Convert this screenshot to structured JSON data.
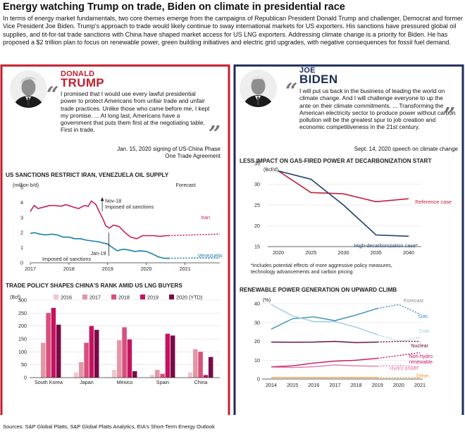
{
  "header": {
    "title": "Energy watching Trump on trade, Biden on climate in presidential race",
    "intro": "In terms of energy market fundamentals, two core themes emerge from the campaigns of Republican President Donald Trump and challenger, Democrat and former Vice President Joe Biden. Trump's approach to trade would likely continue to sway international markets for US exporters. His sanctions have pressured global oil supplies, and tit-for-tat trade sanctions with China have shaped market access for US LNG exporters. Addressing climate change is a priority for Biden. He has proposed a $2 trillion plan to focus on renewable power, green building initiatives and electric grid upgrades, with negative consequences for fossil fuel demand."
  },
  "trump": {
    "first": "DONALD",
    "last": "TRUMP",
    "quote": "I promised that I would use every lawful presidential power to protect Americans from unfair trade and unfair trade practices. Unlike those who came before me, I kept my promise. ... At long last, Americans have a government that puts them first at the negotiating table. First in trade.",
    "attribution": "Jan. 15, 2020 signing of US-China Phase One Trade Agreement",
    "accent": "#c41e2e"
  },
  "biden": {
    "first": "JOE",
    "last": "BIDEN",
    "quote": "I will put us back in the business of leading the world on climate change. And I will challenge everyone to up the ante on their climate commitments. ... Transforming the American electricity sector to produce power without carbon pollution will be the greatest spur to job creation and economic competitiveness in the 21st century.",
    "attribution": "Sept. 14, 2020 speech on climate change",
    "accent": "#1c2d5a"
  },
  "icons": {
    "quote_open": "quote-open-icon",
    "quote_close": "quote-close-icon",
    "portrait": "portrait-icon"
  },
  "sources": "Sources: S&P Global Platts, S&P Global Platts Analytics, EIA's Short-Term Energy Outlook",
  "chart_data": [
    {
      "type": "line",
      "title": "US SANCTIONS RESTRICT IRAN, VENEZUELA OIL SUPPLY",
      "ylabel": "(million b/d)",
      "ylim": [
        0,
        5
      ],
      "yticks": [
        0,
        1,
        2,
        3,
        4,
        5
      ],
      "xlim": [
        2017,
        2021.9
      ],
      "xticks": [
        "2017",
        "2018",
        "2019",
        "2020",
        "2021"
      ],
      "forecast_label": "Forecast",
      "forecast_start": 2020.58,
      "colors": {
        "Iran": "#c41e5f",
        "Venezuela": "#1a7fa6"
      },
      "series": [
        {
          "name": "Iran",
          "x": [
            2017,
            2017.1,
            2017.2,
            2017.35,
            2017.5,
            2017.65,
            2017.8,
            2017.9,
            2018.0,
            2018.1,
            2018.25,
            2018.4,
            2018.5,
            2018.58,
            2018.7,
            2018.8,
            2018.88,
            2018.95,
            2019.05,
            2019.15,
            2019.3,
            2019.45,
            2019.6,
            2019.75,
            2019.9,
            2020.05,
            2020.2,
            2020.35,
            2020.5,
            2020.58
          ],
          "values": [
            3.4,
            3.8,
            3.6,
            3.7,
            3.8,
            3.8,
            3.75,
            3.85,
            3.8,
            3.7,
            3.6,
            3.8,
            3.75,
            4.1,
            3.85,
            3.3,
            2.9,
            2.45,
            2.3,
            2.5,
            2.4,
            2.0,
            1.7,
            1.6,
            1.8,
            1.8,
            1.8,
            1.75,
            1.8,
            1.8
          ]
        },
        {
          "name": "Iran forecast",
          "x": [
            2020.58,
            2021.2,
            2021.9
          ],
          "values": [
            1.8,
            1.85,
            1.9
          ]
        },
        {
          "name": "Venezuela",
          "x": [
            2017,
            2017.1,
            2017.25,
            2017.4,
            2017.55,
            2017.7,
            2017.85,
            2018.0,
            2018.15,
            2018.3,
            2018.45,
            2018.6,
            2018.75,
            2018.9,
            2019.0,
            2019.1,
            2019.25,
            2019.4,
            2019.55,
            2019.7,
            2019.85,
            2020.0,
            2020.15,
            2020.3,
            2020.45,
            2020.58
          ],
          "values": [
            1.95,
            2.0,
            1.9,
            1.85,
            1.9,
            1.85,
            1.7,
            1.7,
            1.6,
            1.6,
            1.5,
            1.45,
            1.4,
            1.3,
            1.25,
            1.05,
            0.8,
            0.9,
            0.85,
            0.75,
            0.8,
            0.75,
            0.6,
            0.4,
            0.3,
            0.3
          ]
        },
        {
          "name": "Venezuela forecast",
          "x": [
            2020.58,
            2021.2,
            2021.9
          ],
          "values": [
            0.3,
            0.32,
            0.32
          ]
        }
      ],
      "annotations": [
        {
          "text": "Nov-18",
          "text2": "Imposed oil sanctions",
          "x": 2018.86,
          "y": 4.15
        },
        {
          "text": "Jan-19",
          "text2": "Imposed oil sanctions",
          "x": 2019.03,
          "y": 0.55
        }
      ]
    },
    {
      "type": "bar",
      "title": "TRADE POLICY SHAPES CHINA'S RANK AMID US LNG BUYERS",
      "ylabel": "(Bcf)",
      "ylim": [
        0,
        300
      ],
      "yticks": [
        0,
        50,
        100,
        150,
        200,
        250,
        300
      ],
      "categories": [
        "South Korea",
        "Japan",
        "Mexico",
        "Spain",
        "China"
      ],
      "series": [
        {
          "name": "2016",
          "color": "#f2c6cf",
          "values": [
            0,
            20,
            30,
            10,
            20
          ]
        },
        {
          "name": "2017",
          "color": "#e495a6",
          "values": [
            135,
            60,
            145,
            30,
            110
          ]
        },
        {
          "name": "2018",
          "color": "#d84e7c",
          "values": [
            250,
            135,
            195,
            15,
            100
          ]
        },
        {
          "name": "2019",
          "color": "#c4135f",
          "values": [
            270,
            200,
            148,
            170,
            10
          ]
        },
        {
          "name": "2020 (YTD)",
          "color": "#7a0a47",
          "values": [
            205,
            185,
            25,
            163,
            80
          ]
        }
      ]
    },
    {
      "type": "line",
      "title": "LESS IMPACT ON GAS-FIRED POWER AT DECARBONIZATION START",
      "ylabel": "(Bcf/d)",
      "ylim": [
        15,
        35
      ],
      "yticks": [
        15,
        20,
        25,
        30,
        35
      ],
      "categories": [
        "2020",
        "2025",
        "2030",
        "2035",
        "2040"
      ],
      "series": [
        {
          "name": "Reference case",
          "color": "#c41e3a",
          "values": [
            33.2,
            28.0,
            27.7,
            25.8,
            26.5
          ]
        },
        {
          "name": "High-decarbonization case*",
          "color": "#1c3f6e",
          "values": [
            33.2,
            31.2,
            25.0,
            17.8,
            17.5
          ]
        }
      ],
      "footnote": "*Includes potential effects of more aggressive policy measures, technology advancements and carbon pricing"
    },
    {
      "type": "line",
      "title": "RENEWABLE POWER GENERATION ON UPWARD CLIMB",
      "ylabel": "(%)",
      "ylim": [
        0,
        40
      ],
      "yticks": [
        0,
        10,
        20,
        30,
        40
      ],
      "categories": [
        "2014",
        "2015",
        "2016",
        "2017",
        "2018",
        "2019",
        "2020",
        "2021"
      ],
      "forecast_label": "Forecast",
      "forecast_from_index": 5,
      "series": [
        {
          "name": "Gas",
          "color": "#3a8fb5",
          "values": [
            26.5,
            32.0,
            33.0,
            31.0,
            34.0,
            37.5,
            39.5,
            34.5
          ]
        },
        {
          "name": "Coal",
          "color": "#9ecae1",
          "values": [
            39.5,
            33.5,
            30.5,
            30.5,
            27.5,
            23.5,
            20.0,
            22.0
          ]
        },
        {
          "name": "Nuclear",
          "color": "#6a0a3e",
          "values": [
            19.6,
            19.5,
            19.6,
            20.0,
            19.3,
            19.6,
            20.0,
            20.0
          ]
        },
        {
          "name": "Non-hydro renewable",
          "color": "#c4135f",
          "values": [
            6.5,
            7.0,
            8.5,
            9.5,
            10.0,
            11.0,
            12.5,
            14.0
          ]
        },
        {
          "name": "Hydro power",
          "color": "#e17aa6",
          "values": [
            6.3,
            6.1,
            6.5,
            7.5,
            7.0,
            6.8,
            7.2,
            6.5
          ]
        },
        {
          "name": "Other",
          "color": "#f39c3a",
          "values": [
            0.8,
            0.8,
            0.8,
            0.8,
            0.8,
            0.8,
            0.8,
            0.8
          ]
        }
      ]
    }
  ]
}
